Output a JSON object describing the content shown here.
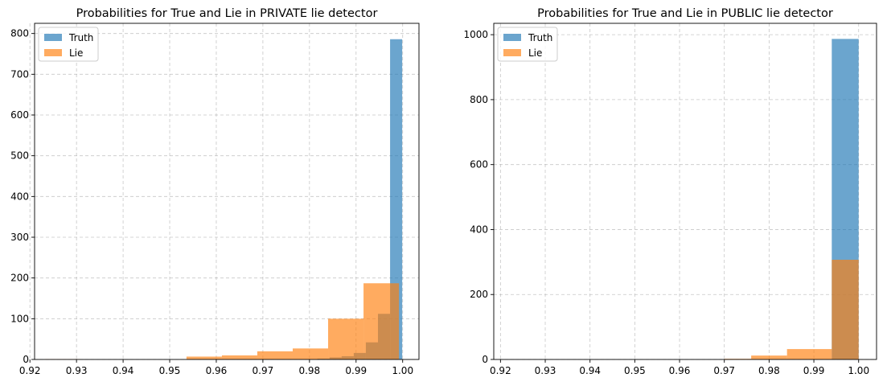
{
  "chart_data": [
    {
      "type": "bar",
      "title": "Probabilities for True and Lie in PRIVATE lie detector",
      "xlabel": "",
      "ylabel": "",
      "xlim": [
        0.921,
        1.0035
      ],
      "ylim": [
        0,
        825
      ],
      "x_ticks": [
        0.92,
        0.93,
        0.94,
        0.95,
        0.96,
        0.97,
        0.98,
        0.99,
        1.0
      ],
      "x_tick_labels": [
        "0.92",
        "0.93",
        "0.94",
        "0.95",
        "0.96",
        "0.97",
        "0.98",
        "0.99",
        "1.00"
      ],
      "y_ticks": [
        0,
        100,
        200,
        300,
        400,
        500,
        600,
        700,
        800
      ],
      "y_tick_labels": [
        "0",
        "100",
        "200",
        "300",
        "400",
        "500",
        "600",
        "700",
        "800"
      ],
      "grid": true,
      "legend_position": "top-left",
      "series": [
        {
          "name": "Truth",
          "color": "#1f77b4",
          "bins": [
            [
              0.9817,
              0.9843,
              2
            ],
            [
              0.9843,
              0.9869,
              5
            ],
            [
              0.9869,
              0.9895,
              8
            ],
            [
              0.9895,
              0.9921,
              16
            ],
            [
              0.9921,
              0.9947,
              42
            ],
            [
              0.9947,
              0.9973,
              112
            ],
            [
              0.9973,
              0.9999,
              786
            ]
          ]
        },
        {
          "name": "Lie",
          "color": "#ff7f0e",
          "bins": [
            [
              0.9232,
              0.9308,
              1
            ],
            [
              0.9308,
              0.9384,
              0
            ],
            [
              0.9384,
              0.946,
              0
            ],
            [
              0.946,
              0.9536,
              0
            ],
            [
              0.9536,
              0.9612,
              7
            ],
            [
              0.9612,
              0.9688,
              10
            ],
            [
              0.9688,
              0.9764,
              20
            ],
            [
              0.9764,
              0.984,
              27
            ],
            [
              0.984,
              0.9916,
              100
            ],
            [
              0.9916,
              0.9992,
              187
            ]
          ]
        }
      ]
    },
    {
      "type": "bar",
      "title": "Probabilities for True and Lie in PUBLIC lie detector",
      "xlabel": "",
      "ylabel": "",
      "xlim": [
        0.9185,
        1.004
      ],
      "ylim": [
        0,
        1035
      ],
      "x_ticks": [
        0.92,
        0.93,
        0.94,
        0.95,
        0.96,
        0.97,
        0.98,
        0.99,
        1.0
      ],
      "x_tick_labels": [
        "0.92",
        "0.93",
        "0.94",
        "0.95",
        "0.96",
        "0.97",
        "0.98",
        "0.99",
        "1.00"
      ],
      "y_ticks": [
        0,
        200,
        400,
        600,
        800,
        1000
      ],
      "y_tick_labels": [
        "0",
        "200",
        "400",
        "600",
        "800",
        "1000"
      ],
      "grid": true,
      "legend_position": "top-left",
      "series": [
        {
          "name": "Truth",
          "color": "#1f77b4",
          "bins": [
            [
              0.994,
              1.0,
              987
            ]
          ]
        },
        {
          "name": "Lie",
          "color": "#ff7f0e",
          "bins": [
            [
              0.964,
              0.97,
              0
            ],
            [
              0.97,
              0.976,
              2
            ],
            [
              0.976,
              0.984,
              12
            ],
            [
              0.984,
              0.994,
              32
            ],
            [
              0.994,
              1.0,
              307
            ]
          ]
        }
      ]
    }
  ]
}
